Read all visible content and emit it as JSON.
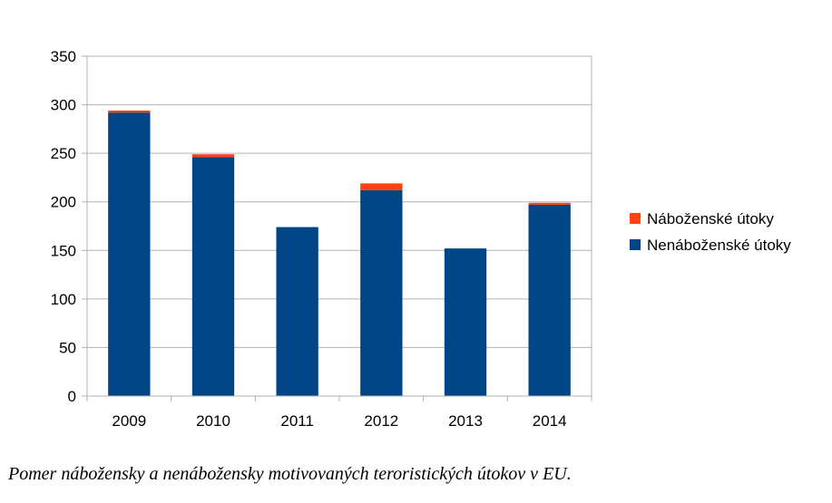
{
  "chart_data": {
    "type": "bar",
    "stacked": true,
    "categories": [
      "2009",
      "2010",
      "2011",
      "2012",
      "2013",
      "2014"
    ],
    "series": [
      {
        "name": "Nenáboženské útoky",
        "color": "#004586",
        "values": [
          292,
          246,
          174,
          212,
          152,
          197
        ]
      },
      {
        "name": "Náboženské útoky",
        "color": "#ff420e",
        "values": [
          2,
          3,
          0,
          7,
          0,
          2
        ]
      }
    ],
    "ylim": [
      0,
      350
    ],
    "yticks": [
      0,
      50,
      100,
      150,
      200,
      250,
      300,
      350
    ],
    "grid": true,
    "legend_position": "right"
  },
  "legend": [
    {
      "label": "Náboženské útoky",
      "color": "#ff420e"
    },
    {
      "label": "Nenáboženské útoky",
      "color": "#004586"
    }
  ],
  "caption": "Pomer nábožensky a nenábožensky motivovaných teroristických útokov v EU."
}
